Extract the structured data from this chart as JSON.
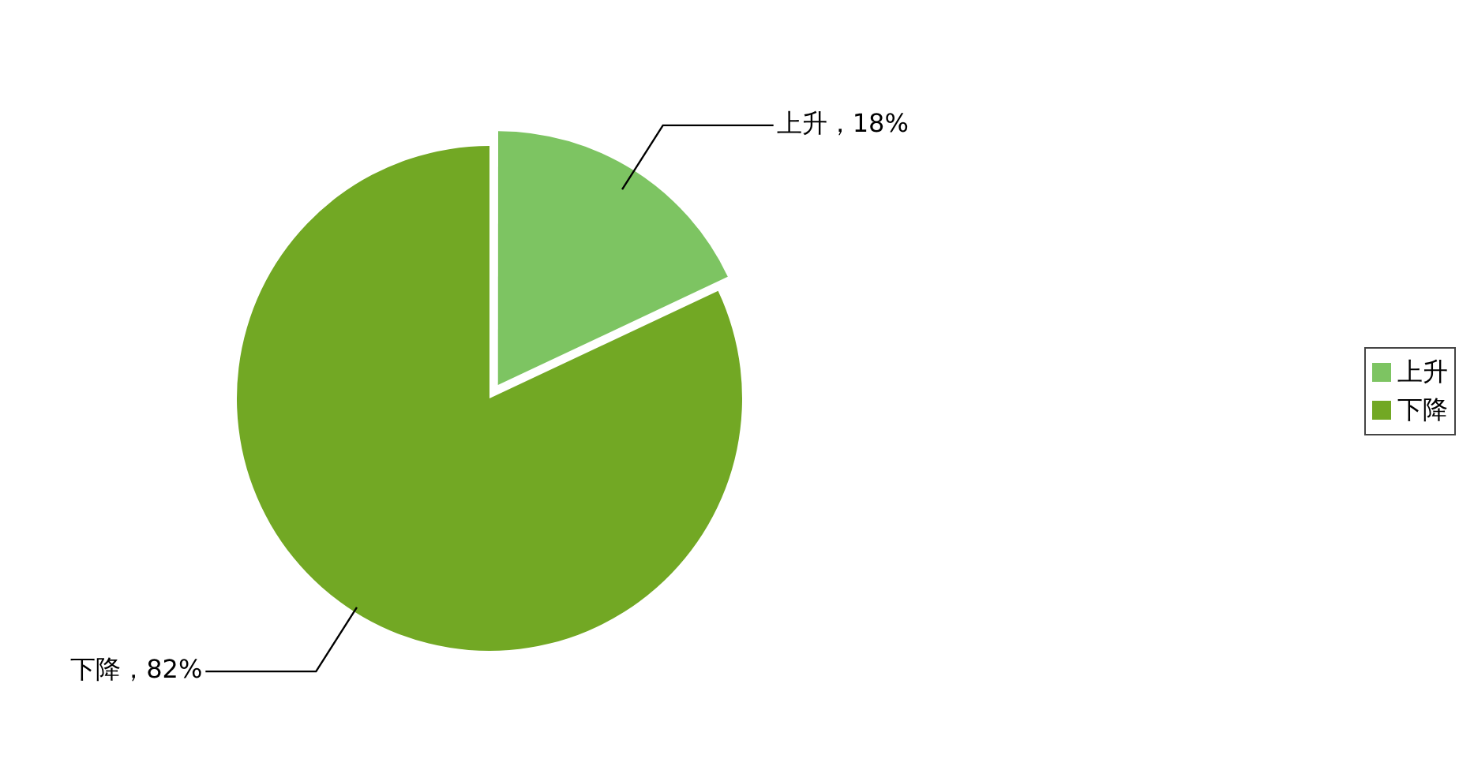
{
  "chart_data": {
    "type": "pie",
    "categories": [
      "上升",
      "下降"
    ],
    "values": [
      18,
      82
    ],
    "colors": [
      "#7dc462",
      "#72a824"
    ],
    "value_labels": [
      "上升，18%",
      "下降，82%"
    ],
    "legend": "right"
  }
}
